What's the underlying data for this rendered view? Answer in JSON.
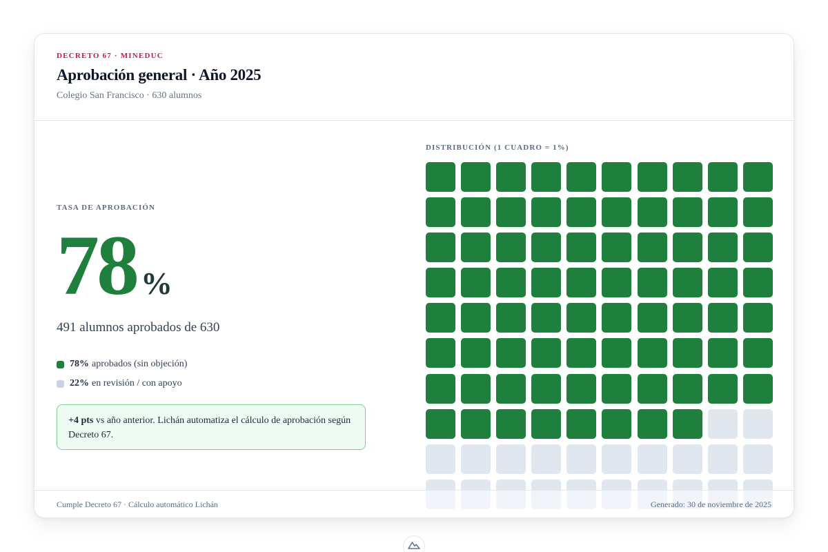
{
  "header": {
    "eyebrow": "DECRETO 67 · MINEDUC",
    "title": "Aprobación general · Año 2025",
    "subtitle": "Colegio San Francisco · 630 alumnos"
  },
  "summary": {
    "rate_label": "TASA DE APROBACIÓN",
    "rate_value": "78",
    "rate_unit": "%",
    "count_line": "491 alumnos aprobados de 630"
  },
  "legend": [
    {
      "pct": "78%",
      "text": "aprobados (sin objeción)",
      "color": "#1f7f3c"
    },
    {
      "pct": "22%",
      "text": "en revisión / con apoyo",
      "color": "#c8d4e4"
    }
  ],
  "callout": {
    "highlight": "+4 pts",
    "text": " vs año anterior. Lichán automatiza el cálculo de aprobación según Decreto 67."
  },
  "distribution": {
    "label": "DISTRIBUCIÓN (1 CUADRO = 1%)",
    "total_cells": 100,
    "filled_cells": 78,
    "columns": 10,
    "filled_color": "#1f7f3c",
    "empty_color": "#e1e7ef"
  },
  "footer": {
    "left": "Cumple Decreto 67 · Cálculo automático Lichán",
    "right": "Generado: 30 de noviembre de 2025"
  },
  "colors": {
    "accent": "#c2185b",
    "success": "#1f7f3c"
  },
  "badge_icon": "mountain-logo-icon"
}
